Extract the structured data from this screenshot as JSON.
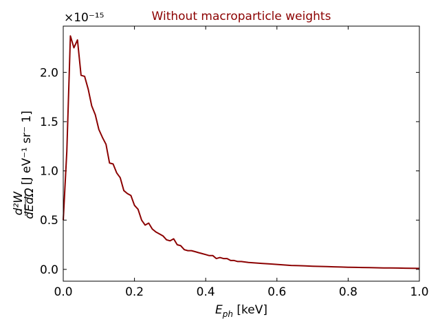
{
  "chart_data": {
    "type": "line",
    "title": "Without macroparticle weights",
    "title_color": "#8b0000",
    "line_color": "#8b0000",
    "xlabel": {
      "main": "E",
      "sub": "ph",
      "unit": " [keV]"
    },
    "ylabel": {
      "frac_num": "d²W",
      "frac_den": "dEdΩ",
      "unit": "[J eV⁻¹ sr⁻ 1]"
    },
    "offset_text": "×10⁻¹⁵",
    "xlim": [
      0,
      1
    ],
    "ylim": [
      -0.12,
      2.47
    ],
    "xticks": [
      0,
      0.2,
      0.4,
      0.6,
      0.8,
      1.0
    ],
    "xtick_labels": [
      "0.0",
      "0.2",
      "0.4",
      "0.6",
      "0.8",
      "1.0"
    ],
    "yticks": [
      0,
      0.5,
      1.0,
      1.5,
      2.0
    ],
    "ytick_labels": [
      "0.0",
      "0.5",
      "1.0",
      "1.5",
      "2.0"
    ],
    "grid": false,
    "series": [
      {
        "x": [
          0.0,
          0.01,
          0.02,
          0.03,
          0.04,
          0.05,
          0.06,
          0.07,
          0.08,
          0.09,
          0.1,
          0.11,
          0.12,
          0.13,
          0.14,
          0.15,
          0.16,
          0.17,
          0.18,
          0.19,
          0.2,
          0.21,
          0.22,
          0.23,
          0.24,
          0.25,
          0.26,
          0.27,
          0.28,
          0.29,
          0.3,
          0.31,
          0.32,
          0.33,
          0.34,
          0.35,
          0.36,
          0.37,
          0.38,
          0.39,
          0.4,
          0.41,
          0.42,
          0.43,
          0.44,
          0.45,
          0.46,
          0.47,
          0.48,
          0.49,
          0.5,
          0.52,
          0.54,
          0.56,
          0.58,
          0.6,
          0.62,
          0.64,
          0.66,
          0.68,
          0.7,
          0.72,
          0.74,
          0.76,
          0.78,
          0.8,
          0.82,
          0.84,
          0.86,
          0.88,
          0.9,
          0.92,
          0.94,
          0.96,
          0.98,
          1.0
        ],
        "y": [
          0.5,
          1.2,
          2.37,
          2.25,
          2.33,
          1.97,
          1.96,
          1.83,
          1.66,
          1.57,
          1.42,
          1.34,
          1.27,
          1.08,
          1.07,
          0.98,
          0.93,
          0.8,
          0.77,
          0.75,
          0.65,
          0.61,
          0.5,
          0.45,
          0.47,
          0.41,
          0.38,
          0.36,
          0.34,
          0.3,
          0.29,
          0.31,
          0.25,
          0.24,
          0.2,
          0.19,
          0.19,
          0.18,
          0.17,
          0.16,
          0.15,
          0.14,
          0.14,
          0.11,
          0.12,
          0.11,
          0.11,
          0.09,
          0.09,
          0.08,
          0.08,
          0.07,
          0.065,
          0.06,
          0.055,
          0.05,
          0.045,
          0.04,
          0.038,
          0.035,
          0.032,
          0.03,
          0.028,
          0.026,
          0.024,
          0.022,
          0.02,
          0.019,
          0.018,
          0.016,
          0.015,
          0.014,
          0.013,
          0.012,
          0.011,
          0.01
        ]
      }
    ]
  }
}
